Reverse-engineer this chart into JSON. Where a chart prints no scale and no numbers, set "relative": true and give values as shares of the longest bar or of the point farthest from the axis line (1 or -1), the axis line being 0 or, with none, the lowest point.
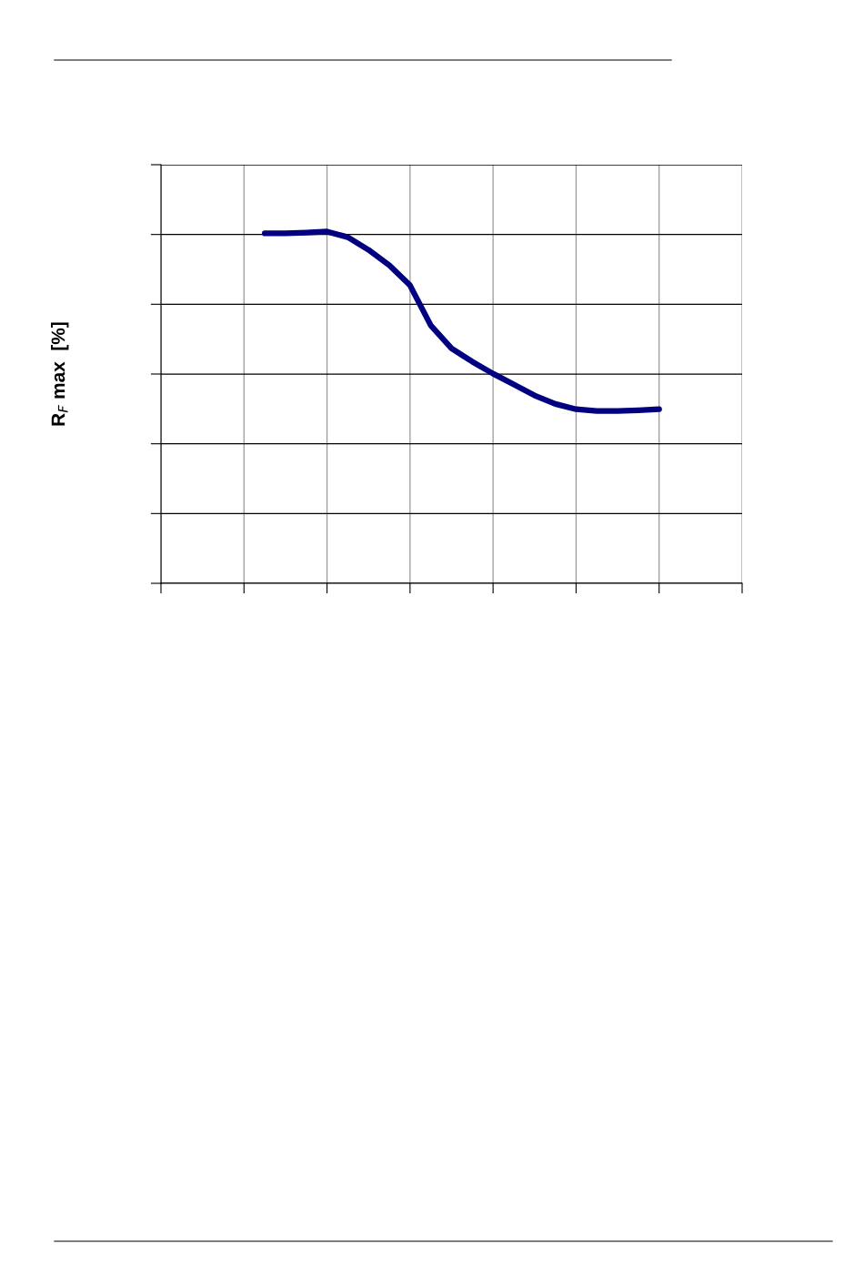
{
  "chart_data": {
    "type": "line",
    "relative": true,
    "ylabel": "R$_{F}$ max  [%]",
    "categories": [
      null,
      null,
      null,
      null,
      null,
      null,
      null,
      null,
      null,
      null,
      null,
      null,
      null,
      null,
      null,
      null,
      null,
      null,
      null,
      null,
      null,
      null,
      null,
      null,
      null,
      null,
      null,
      null,
      null
    ],
    "series": [
      {
        "color": "#000080",
        "values": [
          null,
          null,
          null,
          null,
          null,
          0.995,
          0.995,
          0.997,
          1.0,
          0.984,
          0.948,
          0.904,
          0.847,
          0.733,
          0.668,
          0.63,
          0.596,
          0.565,
          0.534,
          0.51,
          0.495,
          0.49,
          0.49,
          0.492,
          0.495,
          null,
          null,
          null,
          null
        ]
      }
    ],
    "grid": true,
    "tick_labels": false,
    "marker": "none",
    "line_style": "solid"
  }
}
